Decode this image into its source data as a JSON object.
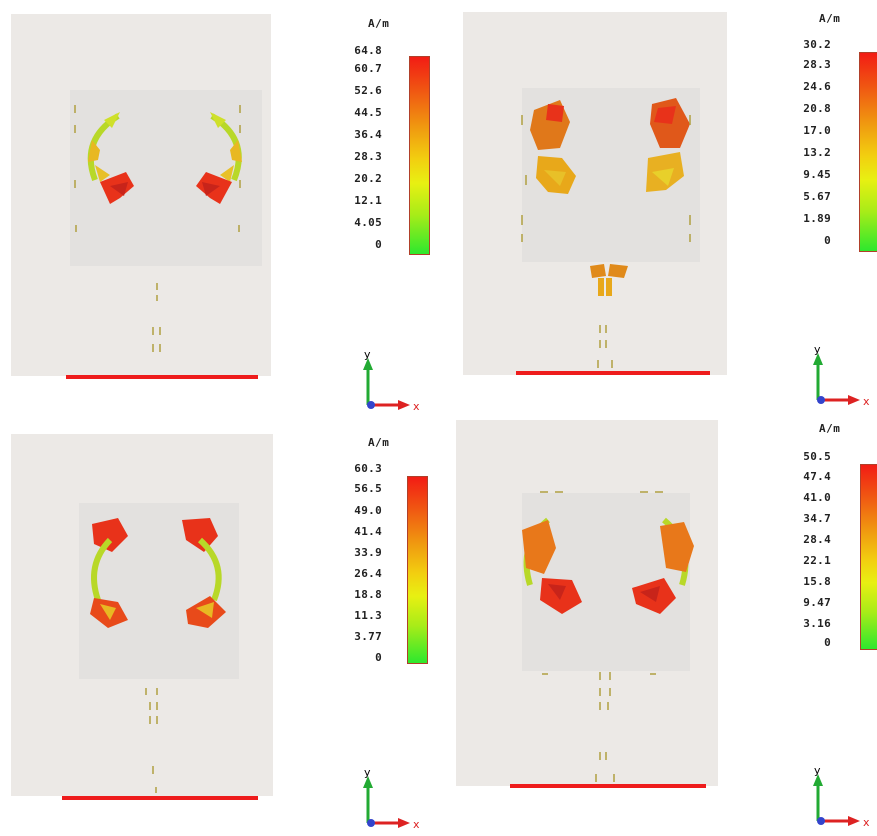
{
  "panels": [
    {
      "id": "top-left",
      "legend": {
        "unit": "A/m",
        "ticks": [
          "64.8",
          "60.7",
          "52.6",
          "44.5",
          "36.4",
          "28.3",
          "20.2",
          "12.1",
          "4.05",
          "0"
        ]
      },
      "axes": {
        "y": "y",
        "x": "x"
      }
    },
    {
      "id": "top-right",
      "legend": {
        "unit": "A/m",
        "ticks": [
          "30.2",
          "28.3",
          "24.6",
          "20.8",
          "17.0",
          "13.2",
          "9.45",
          "5.67",
          "1.89",
          "0"
        ]
      },
      "axes": {
        "y": "y",
        "x": "x"
      }
    },
    {
      "id": "bottom-left",
      "legend": {
        "unit": "A/m",
        "ticks": [
          "60.3",
          "56.5",
          "49.0",
          "41.4",
          "33.9",
          "26.4",
          "18.8",
          "11.3",
          "3.77",
          "0"
        ]
      },
      "axes": {
        "y": "y",
        "x": "x"
      }
    },
    {
      "id": "bottom-right",
      "legend": {
        "unit": "A/m",
        "ticks": [
          "50.5",
          "47.4",
          "41.0",
          "34.7",
          "28.4",
          "22.1",
          "15.8",
          "9.47",
          "3.16",
          "0"
        ]
      },
      "axes": {
        "y": "y",
        "x": "x"
      }
    }
  ],
  "colors": {
    "substrate": "#ece9e6",
    "patch": "#e3e1df",
    "feedline": "#ee1c1c",
    "arrow_high": "#e8321a",
    "arrow_mid": "#e89a1a",
    "arrow_low": "#b8e02a",
    "axis_y": "#22aa33",
    "axis_x": "#dd2222",
    "axis_z": "#3344cc"
  }
}
